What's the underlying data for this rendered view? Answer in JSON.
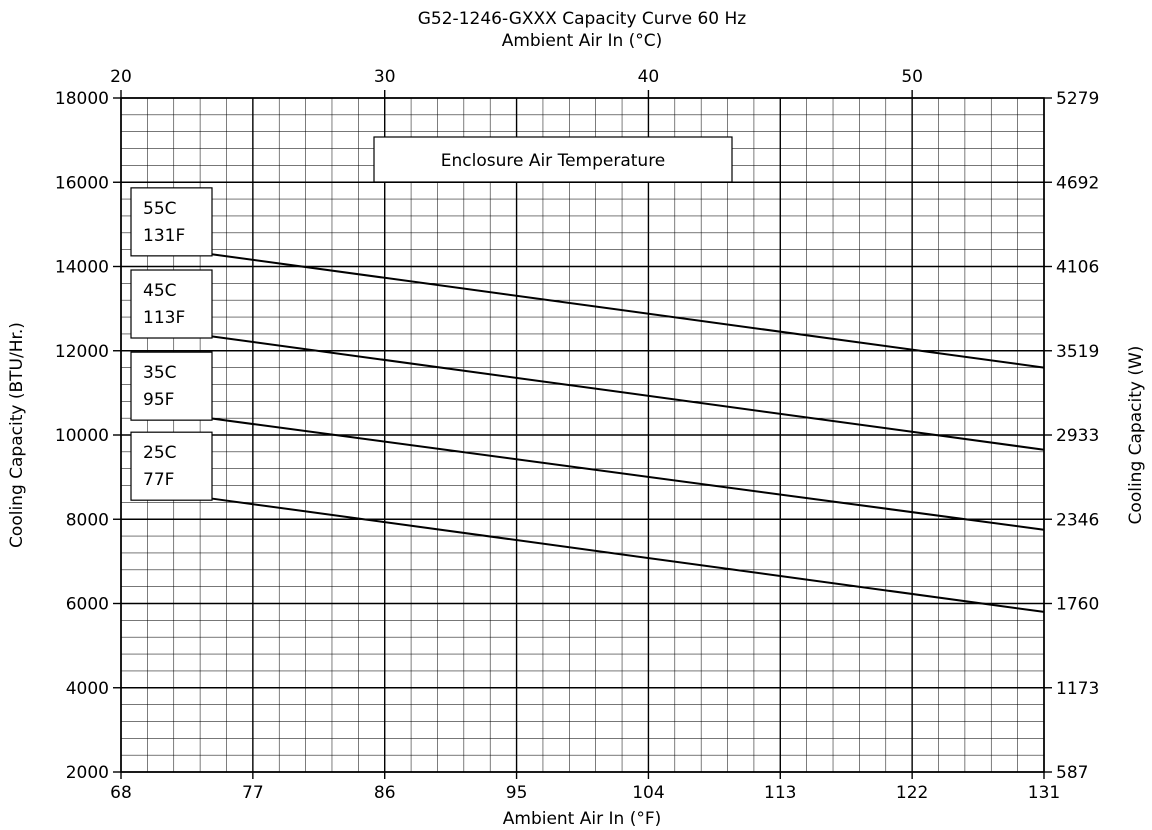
{
  "chart_data": {
    "type": "line",
    "title": "G52-1246-GXXX Capacity Curve 60 Hz",
    "top_axis_label": "Ambient Air In (°C)",
    "xlabel": "Ambient Air In (°F)",
    "ylabel": "Cooling Capacity (BTU/Hr.)",
    "y2label": "Cooling Capacity (W)",
    "xlim": [
      68,
      131
    ],
    "ylim": [
      2000,
      18000
    ],
    "x_ticks": [
      "68",
      "77",
      "86",
      "95",
      "104",
      "113",
      "122",
      "131"
    ],
    "x_tick_values": [
      68,
      77,
      86,
      95,
      104,
      113,
      122,
      131
    ],
    "top_ticks": [
      "20",
      "30",
      "40",
      "50"
    ],
    "top_tick_values_c": [
      20,
      30,
      40,
      50
    ],
    "y_ticks": [
      "2000",
      "4000",
      "6000",
      "8000",
      "10000",
      "12000",
      "14000",
      "16000",
      "18000"
    ],
    "y_tick_values": [
      2000,
      4000,
      6000,
      8000,
      10000,
      12000,
      14000,
      16000,
      18000
    ],
    "y2_ticks": [
      "587",
      "1173",
      "1760",
      "2346",
      "2933",
      "3519",
      "4106",
      "4692",
      "5279"
    ],
    "grid": true,
    "grid_minor_x": 1.8,
    "grid_minor_y": 400,
    "annotation": "Enclosure Air Temperature",
    "series": [
      {
        "name": "55C 131F",
        "label_lines": [
          "55C",
          "131F"
        ],
        "x": [
          74,
          131
        ],
        "y": [
          14300,
          11600
        ]
      },
      {
        "name": "45C 113F",
        "label_lines": [
          "45C",
          "113F"
        ],
        "x": [
          74,
          131
        ],
        "y": [
          12350,
          9650
        ]
      },
      {
        "name": "35C 95F",
        "label_lines": [
          "35C",
          "95F"
        ],
        "x": [
          74,
          131
        ],
        "y": [
          10400,
          7750
        ]
      },
      {
        "name": "25C 77F",
        "label_lines": [
          "25C",
          "77F"
        ],
        "x": [
          74,
          131
        ],
        "y": [
          8500,
          5800
        ]
      }
    ]
  }
}
